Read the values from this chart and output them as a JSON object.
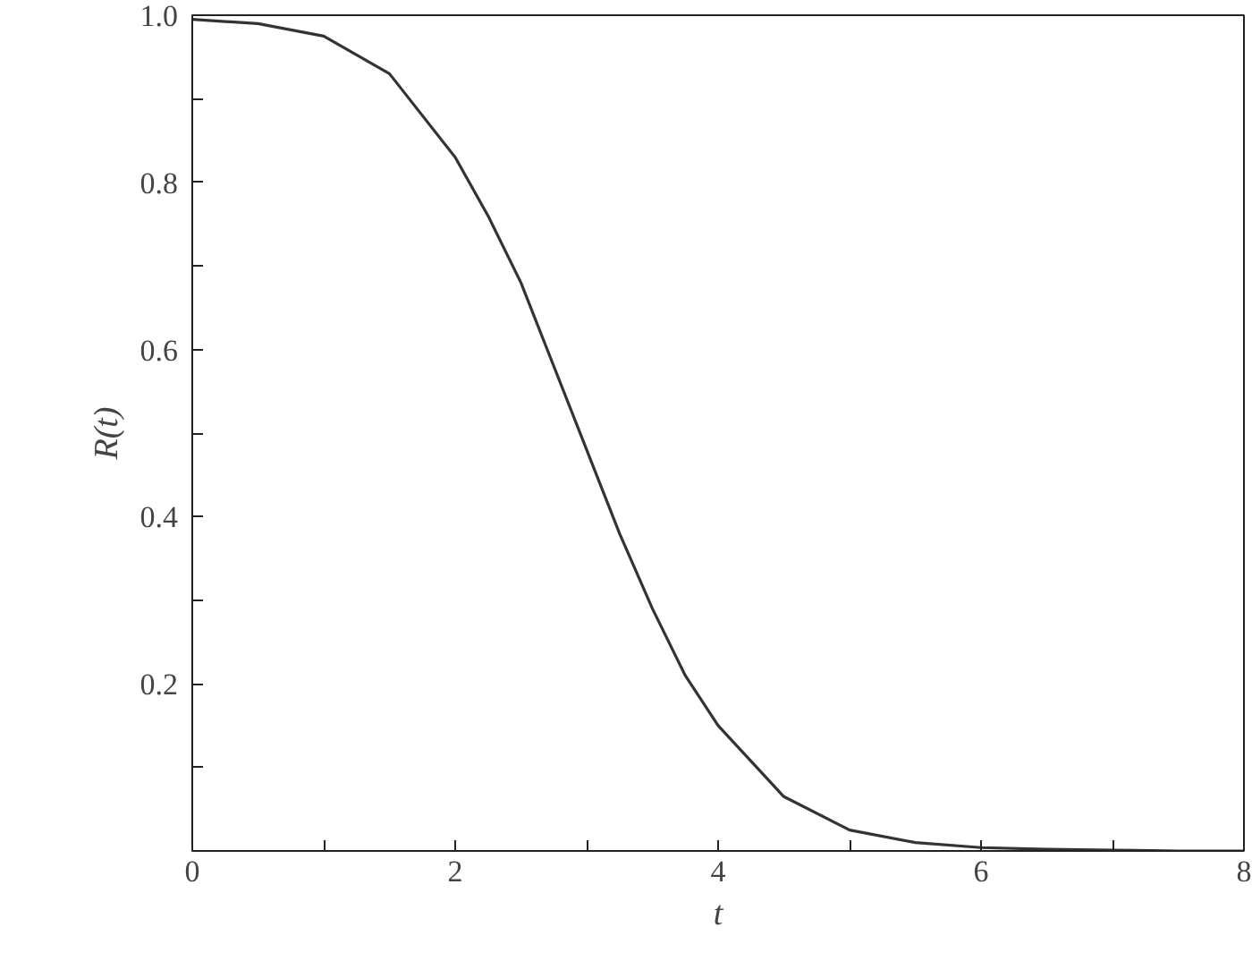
{
  "chart_data": {
    "type": "line",
    "xlabel": "t",
    "ylabel": "R(t)",
    "x": [
      0,
      0.5,
      1,
      1.5,
      2,
      2.25,
      2.5,
      2.75,
      3,
      3.25,
      3.5,
      3.75,
      4,
      4.5,
      5,
      5.5,
      6,
      6.5,
      7,
      7.5,
      8
    ],
    "series": [
      {
        "color": "#333333",
        "values": [
          0.995,
          0.99,
          0.975,
          0.93,
          0.83,
          0.76,
          0.68,
          0.58,
          0.48,
          0.38,
          0.29,
          0.21,
          0.15,
          0.065,
          0.025,
          0.01,
          0.004,
          0.002,
          0.001,
          0.0,
          0.0
        ]
      }
    ],
    "xlim": [
      0,
      8
    ],
    "ylim": [
      0,
      1.0
    ],
    "xticks": [
      0,
      {
        "value": 1,
        "label": null
      },
      2,
      {
        "value": 3,
        "label": null
      },
      4,
      {
        "value": 5,
        "label": null
      },
      6,
      {
        "value": 7,
        "label": null
      },
      8
    ],
    "yticks": [
      {
        "value": 0,
        "label": null
      },
      {
        "value": 0.1,
        "label": null
      },
      0.2,
      {
        "value": 0.3,
        "label": null
      },
      0.4,
      {
        "value": 0.5,
        "label": null
      },
      0.6,
      {
        "value": 0.7,
        "label": null
      },
      0.8,
      {
        "value": 0.9,
        "label": null
      },
      {
        "value": 1.0,
        "label": "1.0"
      }
    ],
    "grid": false,
    "marker": "none",
    "line_style": "solid"
  }
}
